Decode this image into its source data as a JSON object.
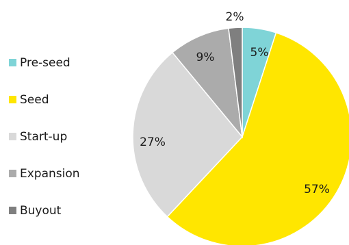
{
  "chart_data": {
    "type": "pie",
    "start_angle": "12 o'clock",
    "direction": "clockwise",
    "legend_position": "left",
    "slices": [
      {
        "label": "Pre-seed",
        "value": 5,
        "value_label": "5%",
        "color": "#7FD4D7"
      },
      {
        "label": "Seed",
        "value": 57,
        "value_label": "57%",
        "color": "#FFE600"
      },
      {
        "label": "Start-up",
        "value": 27,
        "value_label": "27%",
        "color": "#D9D9D9"
      },
      {
        "label": "Expansion",
        "value": 9,
        "value_label": "9%",
        "color": "#ABABAB"
      },
      {
        "label": "Buyout",
        "value": 2,
        "value_label": "2%",
        "color": "#7F7F7F"
      }
    ]
  }
}
